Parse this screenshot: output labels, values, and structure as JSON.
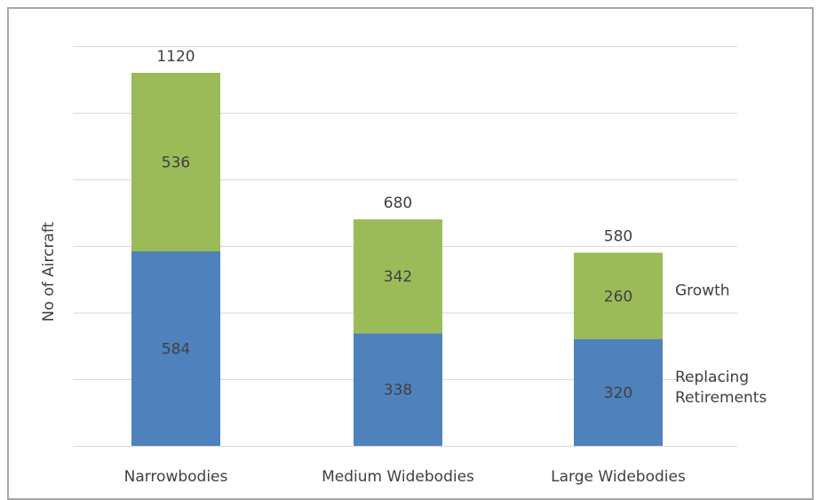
{
  "chart_data": {
    "type": "bar",
    "stacked": true,
    "title": "",
    "xlabel": "",
    "ylabel": "No of Aircraft",
    "categories": [
      "Narrowbodies",
      "Medium Widebodies",
      "Large Widebodies"
    ],
    "series": [
      {
        "name": "Replacing Retirements",
        "values": [
          584,
          338,
          320
        ],
        "color": "#4f81bd"
      },
      {
        "name": "Growth",
        "values": [
          536,
          342,
          260
        ],
        "color": "#9bbb59"
      }
    ],
    "totals": [
      1120,
      680,
      580
    ],
    "ylim": [
      0,
      1200
    ],
    "y_gridline_step": 200,
    "y_tick_labels_shown": false,
    "grid": true,
    "legend": "right-inline",
    "colors": {
      "gridline": "#d9d9d9",
      "text": "#404040",
      "border": "#a6a6a6"
    }
  }
}
